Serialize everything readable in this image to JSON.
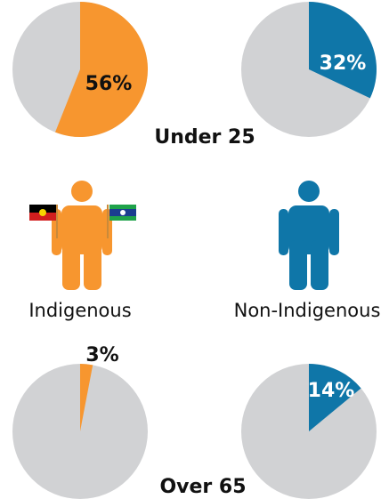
{
  "groups": [
    "Indigenous",
    "Non-Indigenous"
  ],
  "chart_data": [
    {
      "type": "pie",
      "title": "Under 25",
      "values": [
        56,
        32
      ],
      "value_labels": [
        "56%",
        "32%"
      ],
      "colors": [
        "#f7962f",
        "#0f76a8"
      ],
      "other_color": "#d1d2d4"
    },
    {
      "type": "pie",
      "title": "Over 65",
      "values": [
        3,
        14
      ],
      "value_labels": [
        "3%",
        "14%"
      ],
      "colors": [
        "#f7962f",
        "#0f76a8"
      ],
      "other_color": "#d1d2d4"
    }
  ]
}
